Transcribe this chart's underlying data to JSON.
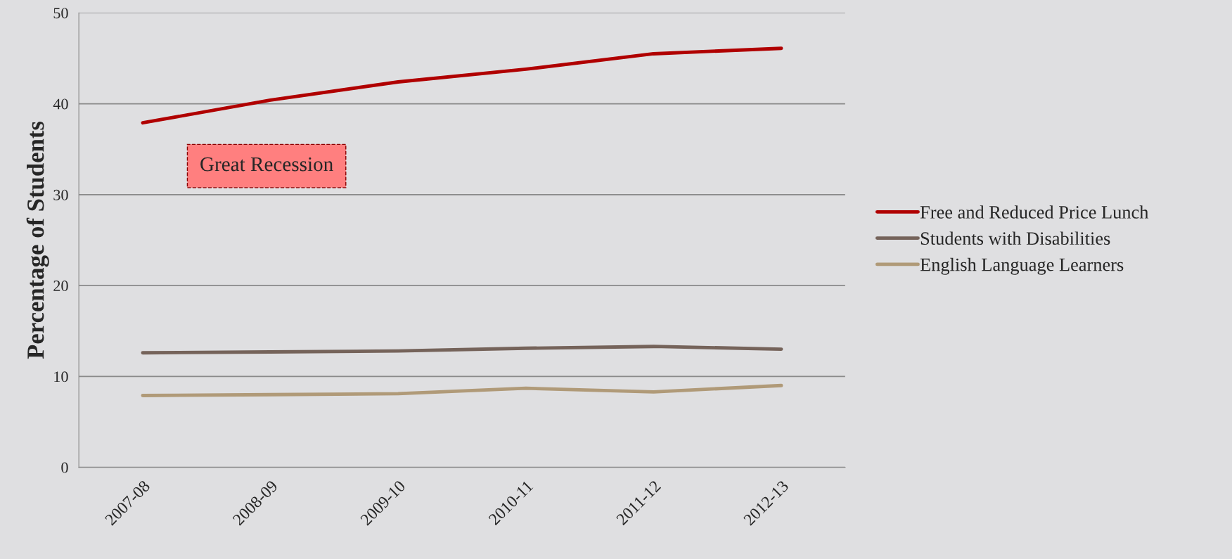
{
  "chart_data": {
    "type": "line",
    "ylabel": "Percentage of Students",
    "categories": [
      "2007-08",
      "2008-09",
      "2009-10",
      "2010-11",
      "2011-12",
      "2012-13"
    ],
    "series": [
      {
        "name": "Free and Reduced Price Lunch",
        "color": "#b00000",
        "values": [
          37.9,
          40.4,
          42.4,
          43.8,
          45.5,
          46.1
        ]
      },
      {
        "name": "Students with Disabilities",
        "color": "#75635a",
        "values": [
          12.6,
          12.7,
          12.8,
          13.1,
          13.3,
          13.0
        ]
      },
      {
        "name": "English Language Learners",
        "color": "#b09a78",
        "values": [
          7.9,
          8.0,
          8.1,
          8.7,
          8.3,
          9.0
        ]
      }
    ],
    "ylim": [
      0,
      50
    ],
    "yticks": [
      0,
      10,
      20,
      30,
      40,
      50
    ],
    "grid": "y",
    "legend": "right",
    "marker": "none",
    "line_style": "solid",
    "annotations": [
      "Great Recession"
    ]
  }
}
